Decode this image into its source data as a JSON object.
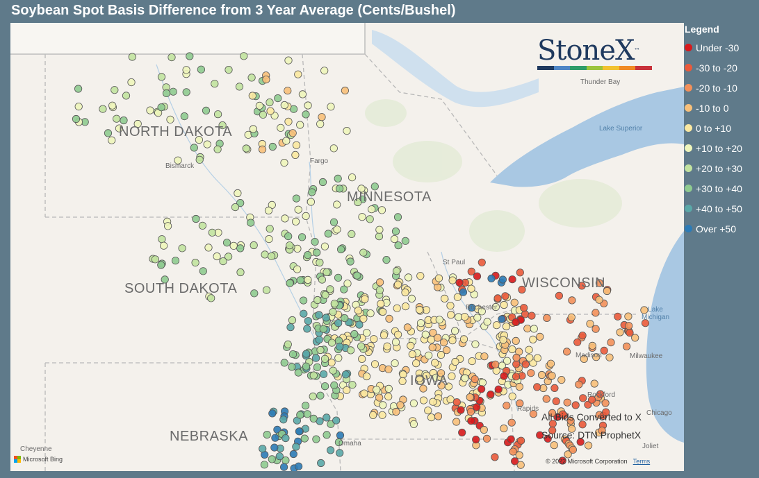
{
  "title": "Soybean Spot Basis Difference from 3 Year Average (Cents/Bushel)",
  "legend": {
    "title": "Legend",
    "items": [
      {
        "label": "Under -30",
        "color": "#d7191c"
      },
      {
        "label": "-30 to -20",
        "color": "#ea5a3b"
      },
      {
        "label": "-20 to -10",
        "color": "#f3905a"
      },
      {
        "label": "-10 to 0",
        "color": "#f8c07a"
      },
      {
        "label": "0 to +10",
        "color": "#fbe8a0"
      },
      {
        "label": "+10 to +20",
        "color": "#eef5bb"
      },
      {
        "label": "+20 to +30",
        "color": "#c2e3a0"
      },
      {
        "label": "+30 to +40",
        "color": "#8fcb90"
      },
      {
        "label": "+40 to +50",
        "color": "#5aa8a8"
      },
      {
        "label": "Over +50",
        "color": "#2c7bb6"
      }
    ]
  },
  "logo": {
    "text": "StoneX",
    "tm": "™",
    "bar_colors": [
      "#1f3a5f",
      "#4f86c6",
      "#2e9c6a",
      "#9cc43c",
      "#f2c230",
      "#f08a24",
      "#c8323b"
    ]
  },
  "states": [
    "NORTH DAKOTA",
    "MINNESOTA",
    "SOUTH DAKOTA",
    "WISCONSIN",
    "IOWA",
    "NEBRASKA"
  ],
  "cities": [
    "Bismarck",
    "Fargo",
    "St Paul",
    "Rochester",
    "Madison",
    "Milwaukee",
    "Rockford",
    "Chicago",
    "Rapids",
    "Omaha",
    "Joliet",
    "Cheyenne",
    "Thunder Bay"
  ],
  "water": {
    "lake_superior": "Lake Superior",
    "lake_michigan": "Lake\nMichigan"
  },
  "notes": {
    "converted": "All Bids Converted to X",
    "source": "Source: DTN ProphetX"
  },
  "attribution": {
    "bing": "Microsoft Bing",
    "copyright": "© 2022 Microsoft Corporation",
    "terms": "Terms"
  },
  "colors": {
    "background": "#5f7a8a",
    "map_land": "#f4f1ec",
    "map_water": "#a9c8e3"
  }
}
